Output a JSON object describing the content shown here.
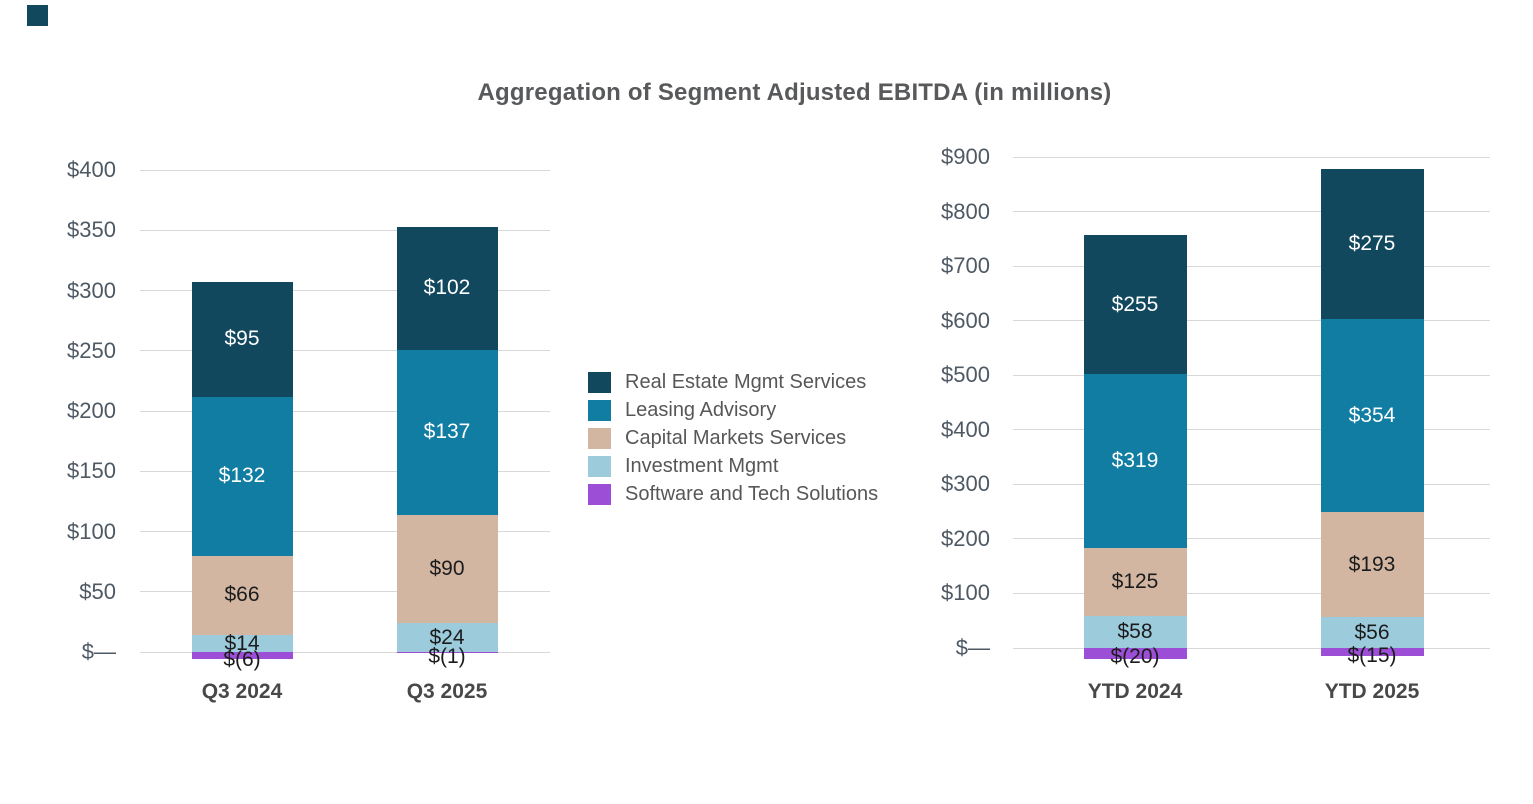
{
  "title": "Aggregation of Segment Adjusted EBITDA (in millions)",
  "colors": {
    "dark_teal": "#12485E",
    "teal_blue": "#127DA3",
    "tan": "#D2B6A2",
    "light_blue": "#9CCBDC",
    "purple": "#9C4FD6",
    "gridline": "#D8D8D8",
    "tick_text": "#4E5964",
    "category_text": "#484848",
    "title_text": "#58595B",
    "legend_text": "#575757",
    "background": "#FFFFFF"
  },
  "legend": {
    "items": [
      {
        "label": "Real Estate Mgmt Services",
        "color": "#12485E"
      },
      {
        "label": "Leasing Advisory",
        "color": "#127DA3"
      },
      {
        "label": "Capital Markets Services",
        "color": "#D2B6A2"
      },
      {
        "label": "Investment Mgmt",
        "color": "#9CCBDC"
      },
      {
        "label": "Software and Tech Solutions",
        "color": "#9C4FD6"
      }
    ]
  },
  "chart_data": [
    {
      "type": "bar",
      "stacked": true,
      "title": "",
      "xlabel": "",
      "ylabel": "",
      "categories": [
        "Q3 2024",
        "Q3 2025"
      ],
      "series": [
        {
          "name": "Real Estate Mgmt Services",
          "color": "#12485E",
          "label_color": "#FFFFFF",
          "values": [
            95,
            102
          ]
        },
        {
          "name": "Leasing Advisory",
          "color": "#127DA3",
          "label_color": "#FFFFFF",
          "values": [
            132,
            137
          ]
        },
        {
          "name": "Capital Markets Services",
          "color": "#D2B6A2",
          "label_color": "#1C1C1C",
          "values": [
            66,
            90
          ]
        },
        {
          "name": "Investment Mgmt",
          "color": "#9CCBDC",
          "label_color": "#1C1C1C",
          "values": [
            14,
            24
          ]
        },
        {
          "name": "Software and Tech Solutions",
          "color": "#9C4FD6",
          "label_color": "#1C1C1C",
          "values": [
            -6,
            -1
          ]
        }
      ],
      "data_labels": [
        [
          "$95",
          "$102"
        ],
        [
          "$132",
          "$137"
        ],
        [
          "$66",
          "$90"
        ],
        [
          "$14",
          "$24"
        ],
        [
          "$(6)",
          "$(1)"
        ]
      ],
      "totals": [
        307,
        353
      ],
      "ylim": [
        0,
        400
      ],
      "ytick_step": 50,
      "y_tick_labels": [
        "$—",
        "$50",
        "$100",
        "$150",
        "$200",
        "$250",
        "$300",
        "$350",
        "$400"
      ],
      "grid": true,
      "legend_position": "right-of-chart"
    },
    {
      "type": "bar",
      "stacked": true,
      "title": "",
      "xlabel": "",
      "ylabel": "",
      "categories": [
        "YTD 2024",
        "YTD 2025"
      ],
      "series": [
        {
          "name": "Real Estate Mgmt Services",
          "color": "#12485E",
          "label_color": "#FFFFFF",
          "values": [
            255,
            275
          ]
        },
        {
          "name": "Leasing Advisory",
          "color": "#127DA3",
          "label_color": "#FFFFFF",
          "values": [
            319,
            354
          ]
        },
        {
          "name": "Capital Markets Services",
          "color": "#D2B6A2",
          "label_color": "#1C1C1C",
          "values": [
            125,
            193
          ]
        },
        {
          "name": "Investment Mgmt",
          "color": "#9CCBDC",
          "label_color": "#1C1C1C",
          "values": [
            58,
            56
          ]
        },
        {
          "name": "Software and Tech Solutions",
          "color": "#9C4FD6",
          "label_color": "#1C1C1C",
          "values": [
            -20,
            -15
          ]
        }
      ],
      "data_labels": [
        [
          "$255",
          "$275"
        ],
        [
          "$319",
          "$354"
        ],
        [
          "$125",
          "$193"
        ],
        [
          "$58",
          "$56"
        ],
        [
          "$(20)",
          "$(15)"
        ]
      ],
      "totals": [
        757,
        878
      ],
      "ylim": [
        0,
        900
      ],
      "ytick_step": 100,
      "y_tick_labels": [
        "$—",
        "$100",
        "$200",
        "$300",
        "$400",
        "$500",
        "$600",
        "$700",
        "$800",
        "$900"
      ],
      "grid": true,
      "legend_position": "left-of-chart"
    }
  ]
}
